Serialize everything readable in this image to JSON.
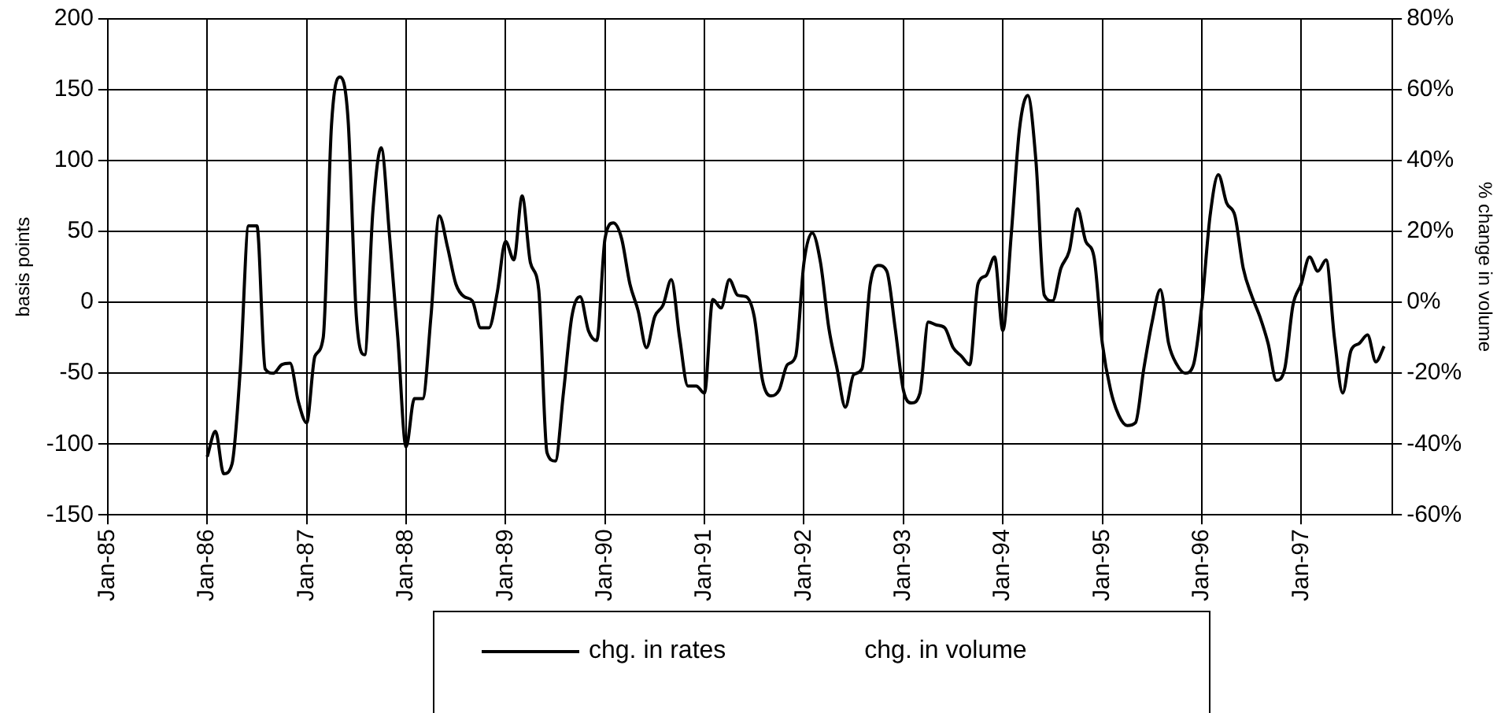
{
  "chart_data": {
    "type": "line",
    "ylabel": "basis points",
    "y2label": "% change in volume",
    "categories": [
      "Jan-85",
      null,
      null,
      null,
      null,
      null,
      null,
      null,
      null,
      null,
      null,
      null,
      "Jan-86",
      null,
      null,
      null,
      null,
      null,
      null,
      null,
      null,
      null,
      null,
      null,
      "Jan-87",
      null,
      null,
      null,
      null,
      null,
      null,
      null,
      null,
      null,
      null,
      null,
      "Jan-88",
      null,
      null,
      null,
      null,
      null,
      null,
      null,
      null,
      null,
      null,
      null,
      "Jan-89",
      null,
      null,
      null,
      null,
      null,
      null,
      null,
      null,
      null,
      null,
      null,
      "Jan-90",
      null,
      null,
      null,
      null,
      null,
      null,
      null,
      null,
      null,
      null,
      null,
      "Jan-91",
      null,
      null,
      null,
      null,
      null,
      null,
      null,
      null,
      null,
      null,
      null,
      "Jan-92",
      null,
      null,
      null,
      null,
      null,
      null,
      null,
      null,
      null,
      null,
      null,
      "Jan-93",
      null,
      null,
      null,
      null,
      null,
      null,
      null,
      null,
      null,
      null,
      null,
      "Jan-94",
      null,
      null,
      null,
      null,
      null,
      null,
      null,
      null,
      null,
      null,
      null,
      "Jan-95",
      null,
      null,
      null,
      null,
      null,
      null,
      null,
      null,
      null,
      null,
      null,
      "Jan-96",
      null,
      null,
      null,
      null,
      null,
      null,
      null,
      null,
      null,
      null,
      null,
      "Jan-97",
      null,
      null,
      null,
      null,
      null,
      null,
      null,
      null,
      null,
      null,
      null
    ],
    "series": [
      {
        "name": "chg. in rates",
        "color": "#000000",
        "values": [
          null,
          null,
          null,
          null,
          null,
          null,
          null,
          null,
          null,
          null,
          null,
          null,
          -109,
          -91,
          -121,
          -114,
          -47,
          54,
          54,
          -47,
          -50,
          -44,
          -43,
          -70,
          -85,
          -38,
          -25,
          125,
          159,
          129,
          -10,
          -37,
          65,
          109,
          47,
          -25,
          -102,
          -68,
          -68,
          -10,
          61,
          39,
          13,
          4,
          1,
          -18,
          -18,
          7,
          43,
          30,
          75,
          28,
          9,
          -106,
          -112,
          -63,
          -10,
          4,
          -20,
          -27,
          45,
          56,
          45,
          13,
          -6,
          -32,
          -10,
          -2,
          16,
          -25,
          -59,
          -59,
          -64,
          2,
          -4,
          16,
          5,
          4,
          -10,
          -55,
          -66,
          -62,
          -44,
          -38,
          28,
          49,
          28,
          -18,
          -47,
          -74,
          -51,
          -47,
          13,
          26,
          22,
          -18,
          -62,
          -71,
          -64,
          -14,
          -16,
          -18,
          -32,
          -38,
          -44,
          13,
          19,
          32,
          -20,
          47,
          122,
          146,
          99,
          5,
          1,
          24,
          36,
          66,
          43,
          32,
          -29,
          -62,
          -80,
          -87,
          -85,
          -47,
          -14,
          9,
          -29,
          -44,
          -50,
          -44,
          -2,
          61,
          90,
          70,
          61,
          24,
          5,
          -10,
          -29,
          -55,
          -47,
          -2,
          13,
          32,
          22,
          30,
          -25,
          -64,
          -34,
          -29,
          -23,
          -42,
          -31,
          null
        ]
      },
      {
        "name": "chg. in volume",
        "axis": "y2",
        "values": [
          null,
          null,
          null,
          null,
          null,
          null,
          null,
          null,
          null,
          null,
          null,
          null,
          null,
          null,
          null,
          null,
          null,
          null,
          null,
          null,
          null,
          null,
          null,
          null,
          null,
          null,
          null,
          null,
          null,
          null,
          null,
          null,
          null,
          null,
          null,
          null,
          null,
          null,
          null,
          null,
          null,
          null,
          null,
          null,
          null,
          null,
          null,
          null,
          null,
          null,
          null,
          null,
          null,
          null,
          null,
          null,
          null,
          null,
          null,
          null,
          null,
          null,
          null,
          null,
          null,
          null,
          null,
          null,
          null,
          null,
          null,
          null,
          null,
          null,
          null,
          null,
          null,
          null,
          null,
          null,
          null,
          null,
          null,
          null,
          null,
          null,
          null,
          null,
          null,
          null,
          null,
          null,
          null,
          null,
          null,
          null,
          null,
          null,
          null,
          null,
          null,
          null,
          null,
          null,
          null,
          null,
          null,
          null,
          null,
          null,
          null,
          null,
          null,
          null,
          null,
          null,
          null,
          null,
          null,
          null,
          null,
          null,
          null,
          null,
          null,
          null,
          null,
          null,
          null,
          null,
          null,
          null,
          null,
          null,
          null,
          null,
          null,
          null,
          null,
          null,
          null,
          null,
          null,
          null,
          null,
          null,
          null,
          null,
          null,
          null,
          null,
          null,
          null,
          null,
          null,
          null
        ]
      }
    ],
    "ylim": [
      -150,
      200
    ],
    "yticks": [
      -150,
      -100,
      -50,
      0,
      50,
      100,
      150,
      200
    ],
    "y2lim": [
      -60,
      80
    ],
    "y2ticks": [
      {
        "value": -60,
        "label": "-60%"
      },
      {
        "value": -40,
        "label": "-40%"
      },
      {
        "value": -20,
        "label": "-20%"
      },
      {
        "value": 0,
        "label": "0%"
      },
      {
        "value": 20,
        "label": "20%"
      },
      {
        "value": 40,
        "label": "40%"
      },
      {
        "value": 60,
        "label": "60%"
      },
      {
        "value": 80,
        "label": "80%"
      }
    ],
    "grid": true,
    "legend": "bottom",
    "marker": "none",
    "line_style": "solid"
  }
}
